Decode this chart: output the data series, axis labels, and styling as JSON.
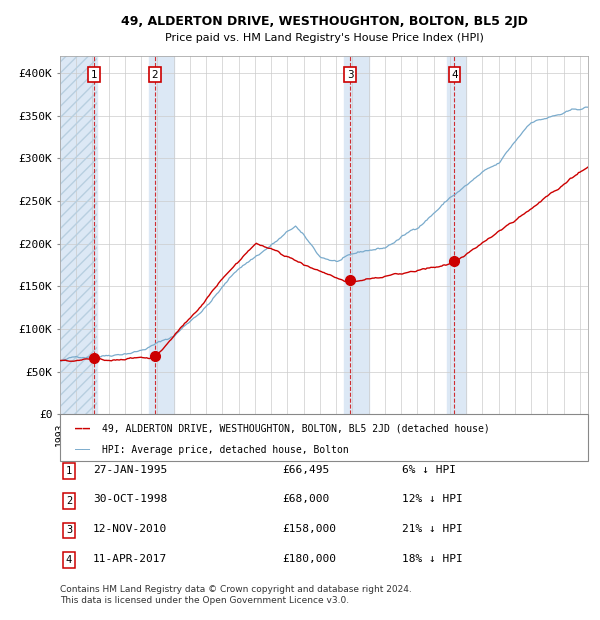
{
  "title": "49, ALDERTON DRIVE, WESTHOUGHTON, BOLTON, BL5 2JD",
  "subtitle": "Price paid vs. HM Land Registry's House Price Index (HPI)",
  "ylabel_ticks": [
    "£0",
    "£50K",
    "£100K",
    "£150K",
    "£200K",
    "£250K",
    "£300K",
    "£350K",
    "£400K"
  ],
  "ytick_values": [
    0,
    50000,
    100000,
    150000,
    200000,
    250000,
    300000,
    350000,
    400000
  ],
  "ylim": [
    0,
    420000
  ],
  "sale_color": "#cc0000",
  "hpi_color": "#7aabcc",
  "sale_label": "49, ALDERTON DRIVE, WESTHOUGHTON, BOLTON, BL5 2JD (detached house)",
  "hpi_label": "HPI: Average price, detached house, Bolton",
  "transactions": [
    {
      "num": 1,
      "date": "27-JAN-1995",
      "price": 66495,
      "pct": "6%",
      "year_x": 1995.07
    },
    {
      "num": 2,
      "date": "30-OCT-1998",
      "price": 68000,
      "pct": "12%",
      "year_x": 1998.83
    },
    {
      "num": 3,
      "date": "12-NOV-2010",
      "price": 158000,
      "pct": "21%",
      "year_x": 2010.87
    },
    {
      "num": 4,
      "date": "11-APR-2017",
      "price": 180000,
      "pct": "18%",
      "year_x": 2017.28
    }
  ],
  "footer_lines": [
    "Contains HM Land Registry data © Crown copyright and database right 2024.",
    "This data is licensed under the Open Government Licence v3.0."
  ],
  "bg_shaded_regions": [
    [
      1993.0,
      1995.3
    ],
    [
      1998.5,
      2000.0
    ],
    [
      2010.5,
      2012.0
    ],
    [
      2016.8,
      2018.0
    ]
  ],
  "hatch_region": [
    1993.0,
    1995.3
  ],
  "xlim_start": 1993.0,
  "xlim_end": 2025.5
}
